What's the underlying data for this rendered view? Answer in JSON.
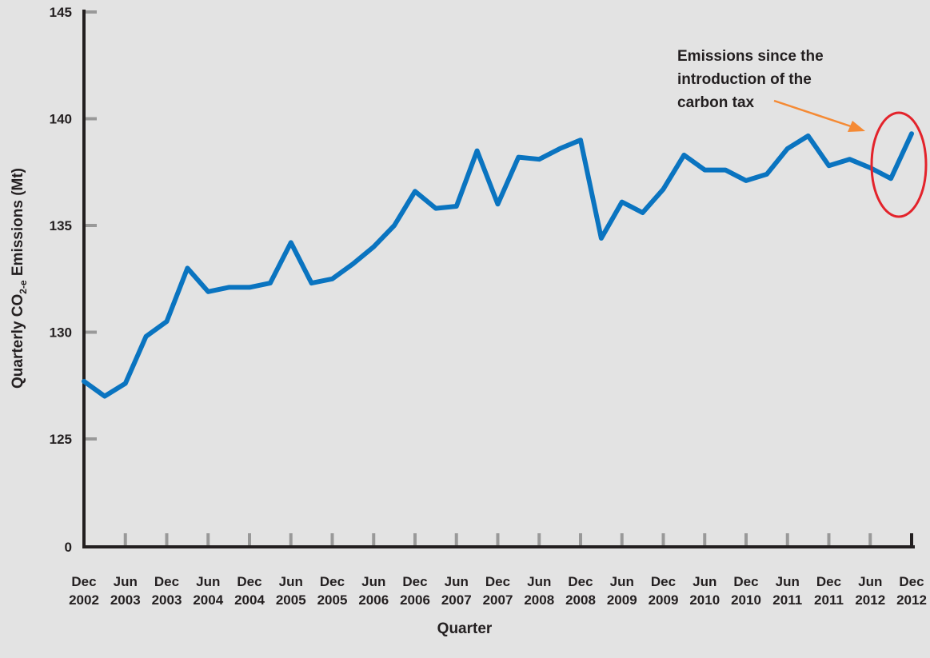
{
  "chart_data": {
    "type": "line",
    "title": "",
    "xlabel": "Quarter",
    "ylabel": {
      "before": "Quarterly CO",
      "sub": "2-e",
      "after": " Emissions (Mt)"
    },
    "y_ticks": [
      "145",
      "140",
      "135",
      "130",
      "125",
      "0"
    ],
    "x_tick_labels": [
      {
        "month": "Dec",
        "year": "2002"
      },
      {
        "month": "Jun",
        "year": "2003"
      },
      {
        "month": "Dec",
        "year": "2003"
      },
      {
        "month": "Jun",
        "year": "2004"
      },
      {
        "month": "Dec",
        "year": "2004"
      },
      {
        "month": "Jun",
        "year": "2005"
      },
      {
        "month": "Dec",
        "year": "2005"
      },
      {
        "month": "Jun",
        "year": "2006"
      },
      {
        "month": "Dec",
        "year": "2006"
      },
      {
        "month": "Jun",
        "year": "2007"
      },
      {
        "month": "Dec",
        "year": "2007"
      },
      {
        "month": "Jun",
        "year": "2008"
      },
      {
        "month": "Dec",
        "year": "2008"
      },
      {
        "month": "Jun",
        "year": "2009"
      },
      {
        "month": "Dec",
        "year": "2009"
      },
      {
        "month": "Jun",
        "year": "2010"
      },
      {
        "month": "Dec",
        "year": "2010"
      },
      {
        "month": "Jun",
        "year": "2011"
      },
      {
        "month": "Dec",
        "year": "2011"
      },
      {
        "month": "Jun",
        "year": "2012"
      },
      {
        "month": "Dec",
        "year": "2012"
      }
    ],
    "axis_break": "y axis jumps from 0 to 125; ticks 125-145 are linear",
    "ylim": [
      120,
      145
    ],
    "grid": false,
    "series": [
      {
        "values": [
          127.7,
          127.0,
          127.6,
          129.8,
          130.5,
          133.0,
          131.9,
          132.1,
          132.1,
          132.3,
          134.2,
          132.3,
          132.5,
          133.2,
          134.0,
          135.0,
          136.6,
          135.8,
          135.9,
          138.5,
          136.0,
          138.2,
          138.1,
          138.6,
          139.0,
          134.4,
          136.1,
          135.6,
          136.7,
          138.3,
          137.6,
          137.6,
          137.1,
          137.4,
          138.6,
          139.2,
          137.8,
          138.1,
          137.7,
          137.2,
          139.3
        ]
      }
    ],
    "annotation": {
      "lines": [
        "Emissions since the",
        "introduction of the",
        "carbon tax"
      ]
    },
    "colors": {
      "line": "#0a74c0",
      "axis": "#231f20",
      "tick": "#999999",
      "arrow": "#f58a34",
      "circle": "#e3232b"
    }
  }
}
